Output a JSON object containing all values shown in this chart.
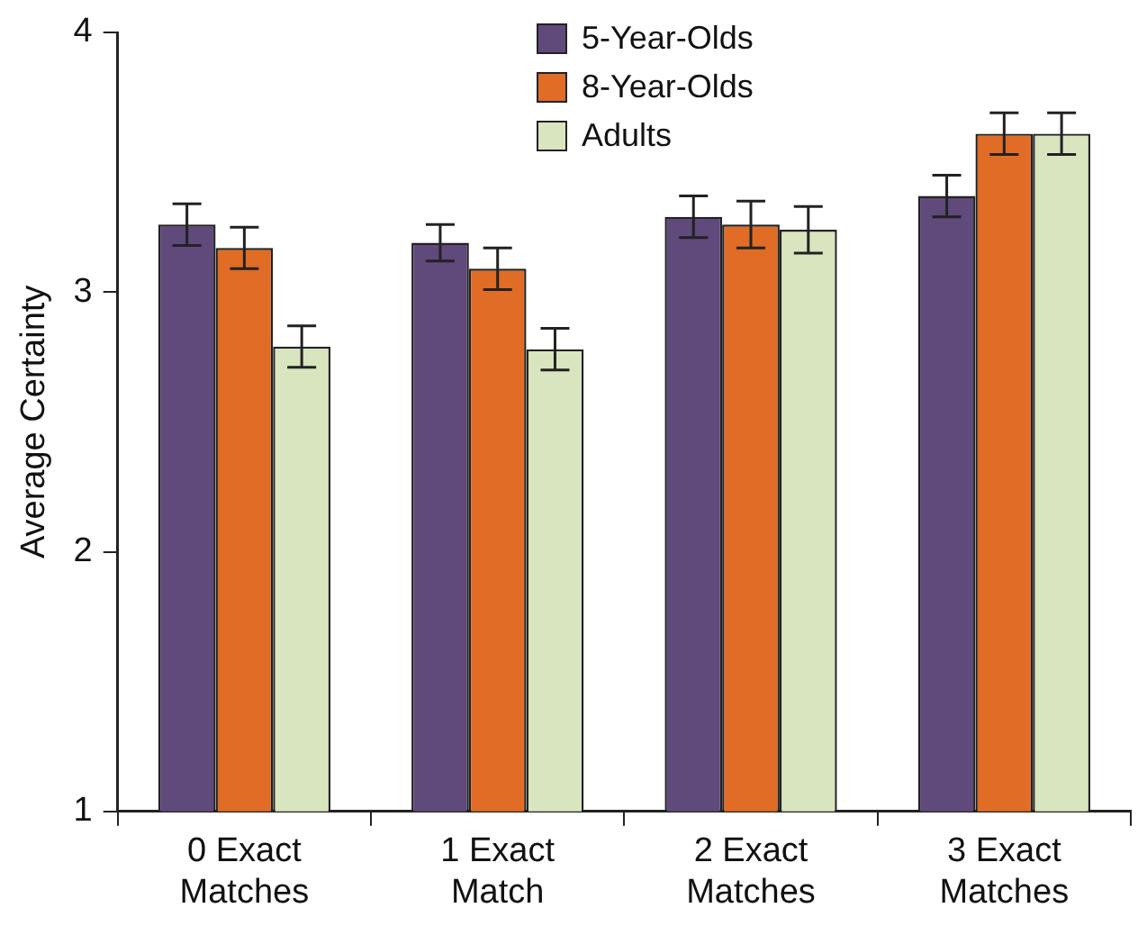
{
  "chart_data": {
    "type": "bar",
    "ylabel": "Average Certainty",
    "categories": [
      "0 Exact Matches",
      "1 Exact Match",
      "2 Exact Matches",
      "3 Exact Matches"
    ],
    "series": [
      {
        "name": "5-Year-Olds",
        "color": "#5f4a7b",
        "values": [
          3.26,
          3.19,
          3.29,
          3.37
        ],
        "errors": [
          0.08,
          0.07,
          0.08,
          0.08
        ]
      },
      {
        "name": "8-Year-Olds",
        "color": "#e06c26",
        "values": [
          3.17,
          3.09,
          3.26,
          3.61
        ],
        "errors": [
          0.08,
          0.08,
          0.09,
          0.08
        ]
      },
      {
        "name": "Adults",
        "color": "#d8e5bf",
        "values": [
          2.79,
          2.78,
          3.24,
          3.61
        ],
        "errors": [
          0.08,
          0.08,
          0.09,
          0.08
        ]
      }
    ],
    "ylim": [
      1,
      4
    ],
    "yticks": [
      1,
      2,
      3,
      4
    ],
    "grid": false,
    "legend": "top"
  }
}
